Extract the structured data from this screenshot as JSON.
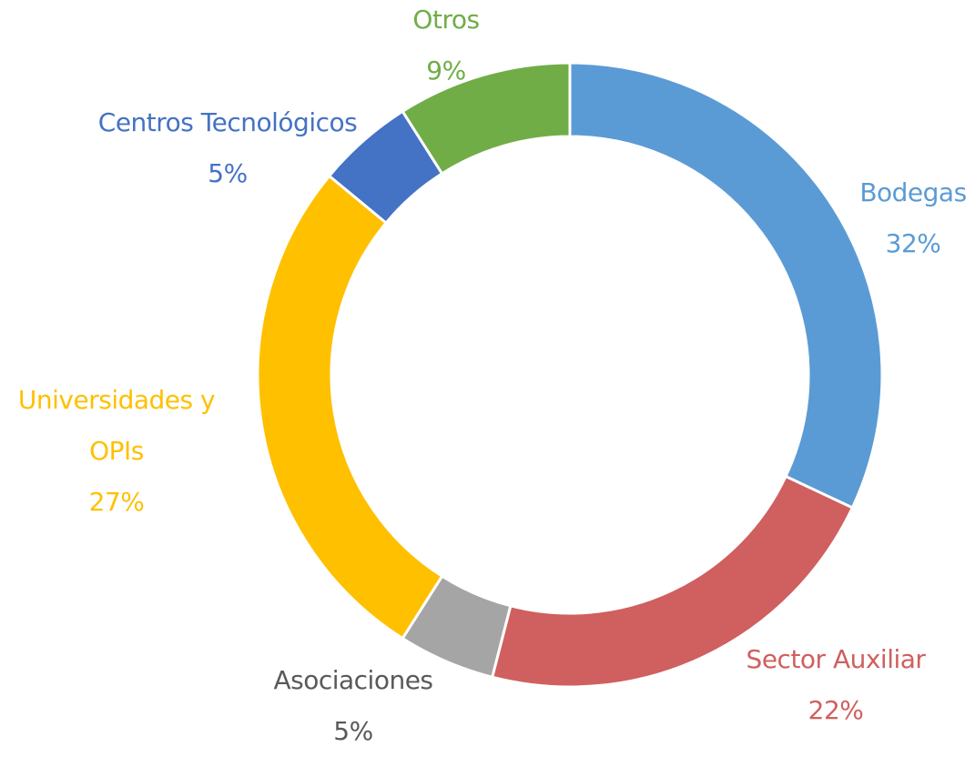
{
  "chart_data": {
    "type": "donut",
    "categories": [
      "Bodegas",
      "Sector Auxiliar",
      "Asociaciones",
      "Universidades y OPIs",
      "Centros Tecnológicos",
      "Otros"
    ],
    "values": [
      32,
      22,
      5,
      27,
      5,
      9
    ],
    "value_labels": [
      "32%",
      "22%",
      "5%",
      "27%",
      "5%",
      "9%"
    ],
    "colors": [
      "#5b9bd5",
      "#d05f5f",
      "#a5a5a5",
      "#ffc000",
      "#4472c4",
      "#70ad47"
    ],
    "label_colors": [
      "#5b9bd5",
      "#d05f5f",
      "#595959",
      "#ffc000",
      "#4472c4",
      "#70ad47"
    ]
  }
}
